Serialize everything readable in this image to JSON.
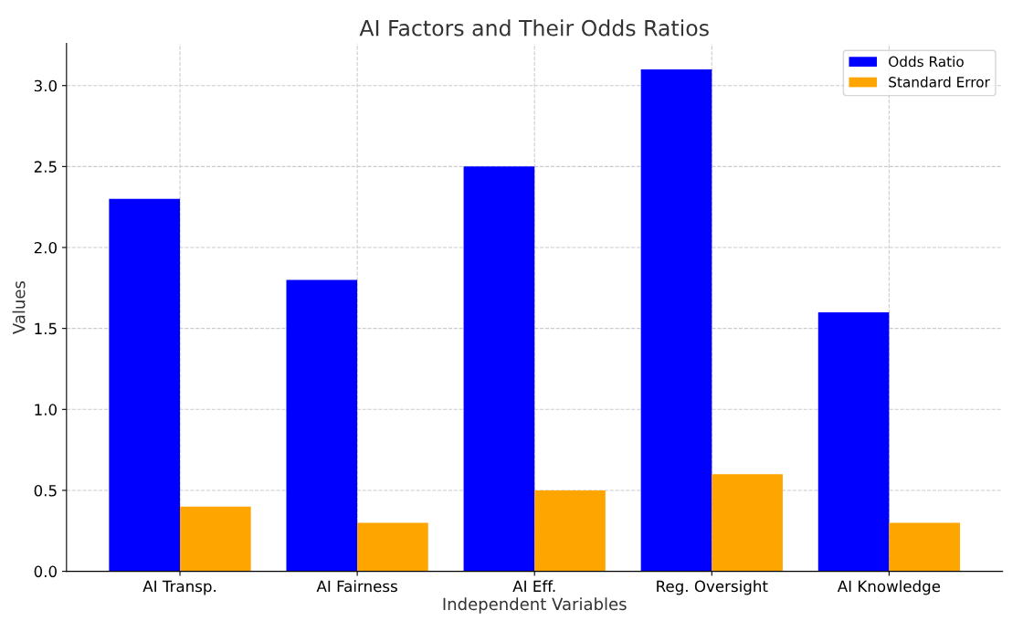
{
  "chart_data": {
    "type": "bar",
    "title": "AI Factors and Their Odds Ratios",
    "xlabel": "Independent Variables",
    "ylabel": "Values",
    "categories": [
      "AI Transp.",
      "AI Fairness",
      "AI Eff.",
      "Reg. Oversight",
      "AI Knowledge"
    ],
    "series": [
      {
        "name": "Odds Ratio",
        "color": "#0000ff",
        "values": [
          2.3,
          1.8,
          2.5,
          3.1,
          1.6
        ]
      },
      {
        "name": "Standard Error",
        "color": "#ffa500",
        "values": [
          0.4,
          0.3,
          0.5,
          0.6,
          0.3
        ]
      }
    ],
    "ylim": [
      0,
      3.26
    ],
    "yticks": [
      {
        "value": 0,
        "label": "0.0"
      },
      {
        "value": 0.5,
        "label": "0.5"
      },
      {
        "value": 1,
        "label": "1.0"
      },
      {
        "value": 1.5,
        "label": "1.5"
      },
      {
        "value": 2,
        "label": "2.0"
      },
      {
        "value": 2.5,
        "label": "2.5"
      },
      {
        "value": 3,
        "label": "3.0"
      }
    ],
    "grid": true,
    "legend": "top right"
  }
}
